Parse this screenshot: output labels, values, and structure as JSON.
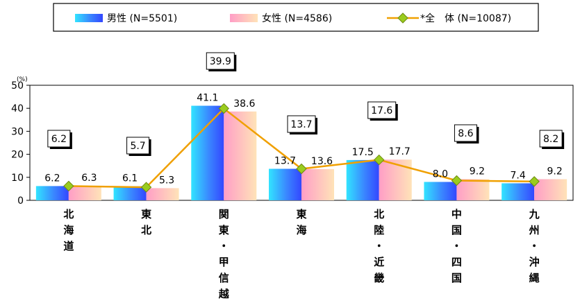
{
  "chart_data": {
    "type": "bar",
    "y_unit": "(%)",
    "ylim": [
      0,
      50
    ],
    "yticks": [
      0,
      10,
      20,
      30,
      40,
      50
    ],
    "grid": false,
    "legend_position": "top",
    "categories": [
      [
        "北",
        "海",
        "道"
      ],
      [
        "東",
        "北"
      ],
      [
        "関",
        "東",
        "・",
        "甲",
        "信",
        "越"
      ],
      [
        "東",
        "海"
      ],
      [
        "北",
        "陸",
        "・",
        "近",
        "畿"
      ],
      [
        "中",
        "国",
        "・",
        "四",
        "国"
      ],
      [
        "九",
        "州",
        "・",
        "沖",
        "縄"
      ]
    ],
    "series": [
      {
        "name": "男性 (N=5501)",
        "kind": "bar",
        "values": [
          6.2,
          6.1,
          41.1,
          13.7,
          17.5,
          8.0,
          7.4
        ],
        "labels": [
          "6.2",
          "6.1",
          "41.1",
          "13.7",
          "17.5",
          "8.0",
          "7.4"
        ]
      },
      {
        "name": "女性 (N=4586)",
        "kind": "bar",
        "values": [
          6.3,
          5.3,
          38.6,
          13.6,
          17.7,
          9.2,
          9.2
        ],
        "labels": [
          "6.3",
          "5.3",
          "38.6",
          "13.6",
          "17.7",
          "9.2",
          "9.2"
        ]
      },
      {
        "name": "*全　体 (N=10087)",
        "kind": "line",
        "values": [
          6.2,
          5.7,
          39.9,
          13.7,
          17.6,
          8.6,
          8.2
        ],
        "labels": [
          "6.2",
          "5.7",
          "39.9",
          "13.7",
          "17.6",
          "8.6",
          "8.2"
        ]
      }
    ],
    "colors": {
      "male": "#2f73ff",
      "female": "#ffa8c0",
      "total_line": "#f0a000",
      "total_marker": "#9acc1e"
    }
  }
}
